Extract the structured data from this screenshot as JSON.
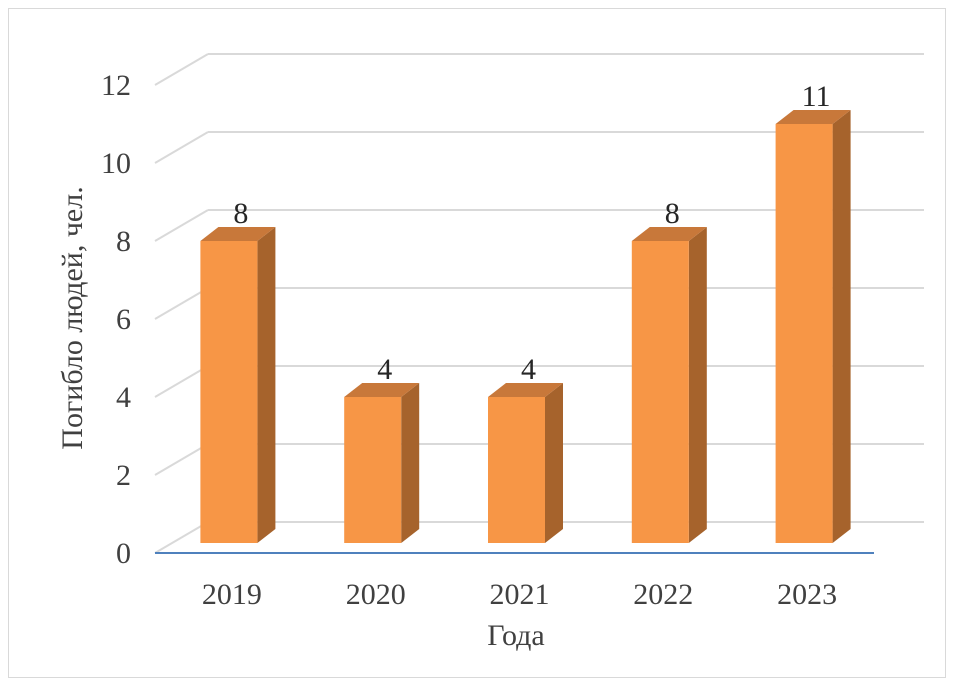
{
  "chart_data": {
    "type": "bar",
    "style": "3d-column",
    "categories": [
      "2019",
      "2020",
      "2021",
      "2022",
      "2023"
    ],
    "values": [
      8,
      4,
      4,
      8,
      11
    ],
    "data_labels": [
      "8",
      "4",
      "4",
      "8",
      "11"
    ],
    "xlabel": "Года",
    "ylabel": "Погибло людей, чел.",
    "ylim": [
      0,
      12
    ],
    "yticks": [
      "0",
      "2",
      "4",
      "6",
      "8",
      "10",
      "12"
    ],
    "grid": true,
    "legend": "none",
    "colors": {
      "bar_front": "#F79646",
      "bar_side": "#A6632C",
      "bar_top": "#C8783A",
      "grid": "#D9D9D9",
      "baseline": "#4F81BD",
      "text": "#404040"
    }
  }
}
